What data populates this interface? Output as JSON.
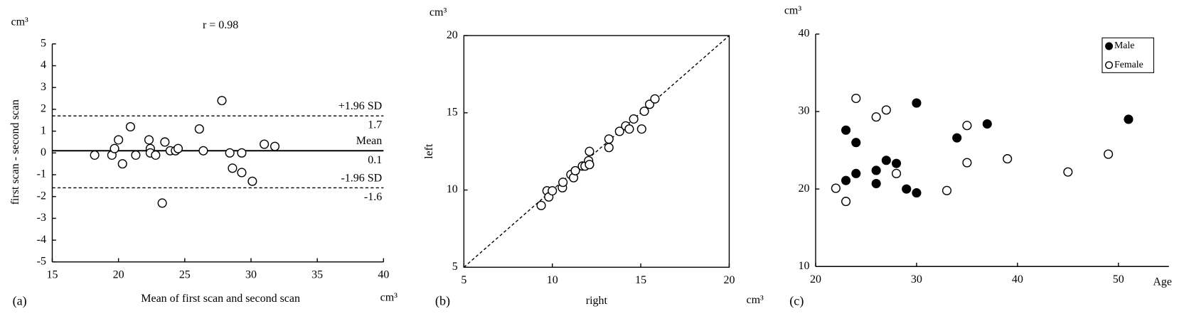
{
  "chart_data": [
    {
      "type": "scatter",
      "title": "r = 0.98",
      "panel_label": "(a)",
      "x_label": "Mean of first scan and second scan",
      "y_label": "first scan - second scan",
      "x_unit": "cm³",
      "y_unit": "cm³",
      "xlim": [
        15,
        40
      ],
      "ylim": [
        -5,
        5
      ],
      "xticks": [
        15,
        20,
        25,
        30,
        35,
        40
      ],
      "yticks": [
        -5,
        -4,
        -3,
        -2,
        -1,
        0,
        1,
        2,
        3,
        4,
        5
      ],
      "marker": "open",
      "color": "#000000",
      "x": [
        18.2,
        19.5,
        19.7,
        20.0,
        20.3,
        20.9,
        21.3,
        22.3,
        22.4,
        22.4,
        22.8,
        23.3,
        23.5,
        23.9,
        24.3,
        24.5,
        26.1,
        26.4,
        27.8,
        28.4,
        28.6,
        29.3,
        29.3,
        30.1,
        31.0,
        31.8
      ],
      "values": [
        -0.1,
        -0.1,
        0.2,
        0.6,
        -0.5,
        1.2,
        -0.1,
        0.6,
        0.2,
        0,
        -0.1,
        -2.3,
        0.5,
        0.1,
        0.1,
        0.2,
        1.1,
        0.1,
        2.4,
        0,
        -0.7,
        -0.9,
        0,
        -1.3,
        0.4,
        0.3
      ],
      "reference_lines": [
        {
          "label": "+1.96 SD",
          "value": 1.7,
          "style": "dashed"
        },
        {
          "label": "Mean",
          "value": 0.1,
          "style": "solid"
        },
        {
          "label": "-1.96 SD",
          "value": -1.6,
          "style": "dashed"
        }
      ]
    },
    {
      "type": "scatter",
      "panel_label": "(b)",
      "x_label": "right",
      "y_label": "left",
      "x_unit": "cm³",
      "y_unit": "cm³",
      "xlim": [
        5,
        20
      ],
      "ylim": [
        5,
        20
      ],
      "xticks": [
        5,
        10,
        15,
        20
      ],
      "yticks": [
        5,
        10,
        15,
        20
      ],
      "identity_line": true,
      "marker": "open",
      "color": "#000000",
      "x": [
        9.37,
        9.7,
        9.8,
        10.0,
        10.57,
        10.6,
        11.05,
        11.2,
        11.3,
        11.7,
        11.85,
        12.05,
        12.1,
        12.1,
        13.2,
        13.2,
        13.8,
        14.15,
        14.35,
        14.6,
        15.05,
        15.2,
        15.5,
        15.8
      ],
      "values": [
        9.0,
        9.95,
        9.55,
        9.95,
        10.15,
        10.5,
        11.0,
        10.8,
        11.25,
        11.55,
        11.55,
        11.9,
        11.65,
        12.5,
        12.75,
        13.3,
        13.8,
        14.15,
        13.95,
        14.6,
        13.95,
        15.1,
        15.55,
        15.9
      ]
    },
    {
      "type": "scatter",
      "panel_label": "(c)",
      "x_label": "Age",
      "y_unit": "cm³",
      "xlim": [
        20,
        55
      ],
      "ylim": [
        10,
        40
      ],
      "xticks": [
        20,
        30,
        40,
        50
      ],
      "yticks": [
        10,
        20,
        30,
        40
      ],
      "legend": "upper right",
      "series": [
        {
          "name": "Male",
          "marker": "filled",
          "color": "#000000",
          "x": [
            23,
            24,
            23,
            24,
            26,
            26,
            27,
            28,
            29,
            30,
            30,
            34,
            37,
            51
          ],
          "values": [
            27.6,
            26.0,
            21.1,
            22.0,
            22.4,
            20.7,
            23.7,
            23.3,
            20.0,
            19.5,
            31.1,
            26.6,
            28.4,
            29.0
          ]
        },
        {
          "name": "Female",
          "marker": "open",
          "color": "#000000",
          "x": [
            22,
            23,
            24,
            26,
            27,
            28,
            35,
            35,
            39,
            45,
            49,
            33
          ],
          "values": [
            20.1,
            18.4,
            31.7,
            29.3,
            30.2,
            22.0,
            28.2,
            23.4,
            23.9,
            22.2,
            24.5,
            19.8
          ]
        }
      ]
    }
  ]
}
